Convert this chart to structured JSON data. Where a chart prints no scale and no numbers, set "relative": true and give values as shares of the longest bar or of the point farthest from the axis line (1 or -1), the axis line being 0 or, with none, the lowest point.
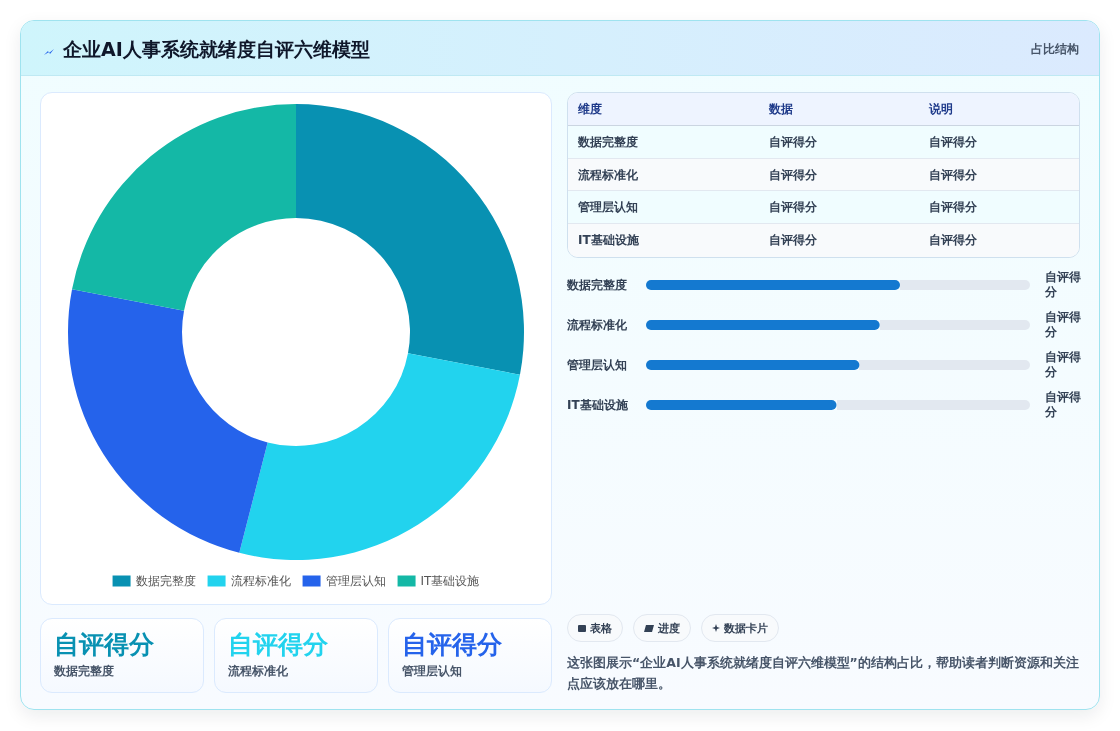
{
  "chart_data": [
    {
      "type": "other",
      "title": "企业AI人事系统就绪度自评六维模型",
      "subtitle": "占比结构"
    },
    {
      "type": "donut",
      "categories": [
        "数据完整度",
        "流程标准化",
        "管理层认知",
        "IT基础设施"
      ],
      "values": [
        28,
        26,
        24,
        22
      ],
      "colors": [
        "#0891b2",
        "#22d3ee",
        "#2563eb",
        "#14b8a6"
      ],
      "legend": "bottom",
      "annotations": [
        "这张图展示“企业AI人事系统就绪度自评六维模型”的结构占比，帮助读者判断资源和关注点应该放在哪里。"
      ]
    },
    {
      "type": "other",
      "categories": [
        "维度",
        "数据",
        "说明"
      ],
      "y_categories": [
        "数据完整度",
        "流程标准化",
        "管理层认知",
        "IT基础设施"
      ],
      "cell_labels": [
        [
          "自评得分",
          "自评得分"
        ],
        [
          "自评得分",
          "自评得分"
        ],
        [
          "自评得分",
          "自评得分"
        ],
        [
          "自评得分",
          "自评得分"
        ]
      ]
    },
    {
      "type": "bar",
      "orientation": "horizontal",
      "relative": true,
      "categories": [
        "数据完整度",
        "流程标准化",
        "管理层认知",
        "IT基础设施"
      ],
      "values": [
        1,
        0.92,
        0.84,
        0.75
      ],
      "color": "#1479d0",
      "annotations": [
        "自评得分",
        "自评得分",
        "自评得分",
        "自评得分"
      ]
    },
    {
      "type": "other",
      "categories": [
        "数据完整度",
        "流程标准化",
        "管理层认知"
      ],
      "value_labels": [
        "自评得分",
        "自评得分",
        "自评得分"
      ]
    },
    {
      "type": "other",
      "categories": [
        "表格",
        "进度",
        "数据卡片"
      ]
    }
  ]
}
